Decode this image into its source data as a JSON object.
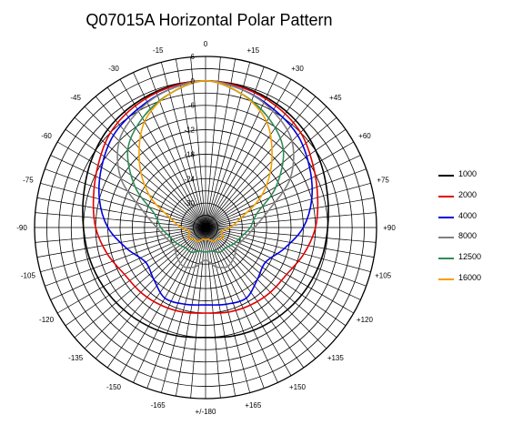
{
  "chart_data": {
    "type": "polar-line",
    "title": "Q07015A Horizontal Polar Pattern",
    "angle_labels": [
      "0",
      "+15",
      "+30",
      "+45",
      "+60",
      "+75",
      "+90",
      "+105",
      "+120",
      "+135",
      "+150",
      "+165",
      "+/-180",
      "-165",
      "-150",
      "-135",
      "-120",
      "-105",
      "-90",
      "-75",
      "-60",
      "-45",
      "-30",
      "-15"
    ],
    "radial_labels": [
      "6",
      "0",
      "-6",
      "-12",
      "-18",
      "-24",
      "-30"
    ],
    "radial_range_db": [
      -36,
      6
    ],
    "radial_step_db": 3,
    "angle_grid_step_deg": 5,
    "angles_deg": [
      0,
      15,
      30,
      45,
      60,
      75,
      90,
      105,
      120,
      135,
      150,
      165,
      180,
      195,
      210,
      225,
      240,
      255,
      270,
      285,
      300,
      315,
      330,
      345
    ],
    "series": [
      {
        "name": "1000",
        "color": "#000000",
        "values_db": [
          0,
          -0.3,
          -1,
          -2,
          -3.5,
          -5,
          -6,
          -6.5,
          -7,
          -7.5,
          -8,
          -8.5,
          -9,
          -8.5,
          -8,
          -7.5,
          -7,
          -6.5,
          -6,
          -5,
          -3.5,
          -2,
          -1,
          -0.3
        ]
      },
      {
        "name": "2000",
        "color": "#e00000",
        "values_db": [
          0,
          -0.5,
          -1.5,
          -3,
          -5.5,
          -7.5,
          -9,
          -11,
          -13,
          -13.5,
          -14,
          -14.5,
          -15,
          -14.5,
          -14,
          -13.5,
          -13,
          -11,
          -9,
          -7.5,
          -5.5,
          -3,
          -1.5,
          -0.5
        ]
      },
      {
        "name": "4000",
        "color": "#0000e0",
        "values_db": [
          0,
          -1,
          -2.5,
          -4,
          -6.5,
          -9,
          -12,
          -16,
          -19,
          -18,
          -16,
          -16.5,
          -17,
          -16.5,
          -16,
          -18,
          -19,
          -16,
          -12,
          -9,
          -6.5,
          -4,
          -2.5,
          -1
        ]
      },
      {
        "name": "8000",
        "color": "#808080",
        "values_db": [
          0,
          -1,
          -3,
          -6,
          -12,
          -20,
          -24,
          -26,
          -27,
          -26,
          -25,
          -26,
          -28,
          -26,
          -25,
          -26,
          -27,
          -26,
          -24,
          -20,
          -12,
          -6,
          -3,
          -1
        ]
      },
      {
        "name": "12500",
        "color": "#2e8b57",
        "values_db": [
          0,
          -2,
          -5,
          -9,
          -16,
          -23,
          -25,
          -27,
          -28,
          -29,
          -29,
          -30,
          -30,
          -30,
          -29,
          -29,
          -28,
          -27,
          -25,
          -23,
          -16,
          -9,
          -5,
          -2
        ]
      },
      {
        "name": "16000",
        "color": "#f5a000",
        "values_db": [
          0,
          -2,
          -6,
          -13,
          -20,
          -27,
          -30,
          -32,
          -31,
          -32,
          -32,
          -33,
          -33,
          -33,
          -32,
          -32,
          -31,
          -32,
          -30,
          -27,
          -20,
          -13,
          -6,
          -2
        ]
      }
    ]
  }
}
